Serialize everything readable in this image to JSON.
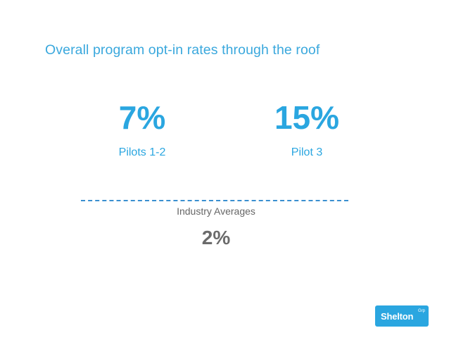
{
  "slide": {
    "title": "Overall program opt-in rates through the roof"
  },
  "stats": [
    {
      "value": "7%",
      "label": "Pilots 1-2"
    },
    {
      "value": "15%",
      "label": "Pilot 3"
    }
  ],
  "industry": {
    "label": "Industry Averages",
    "value": "2%"
  },
  "logo": {
    "main": "Shelton",
    "sup": "Grp"
  },
  "colors": {
    "accent": "#2aa6e0",
    "title": "#3aa8dd",
    "divider": "#3a8fd0",
    "muted_text": "#666666"
  }
}
